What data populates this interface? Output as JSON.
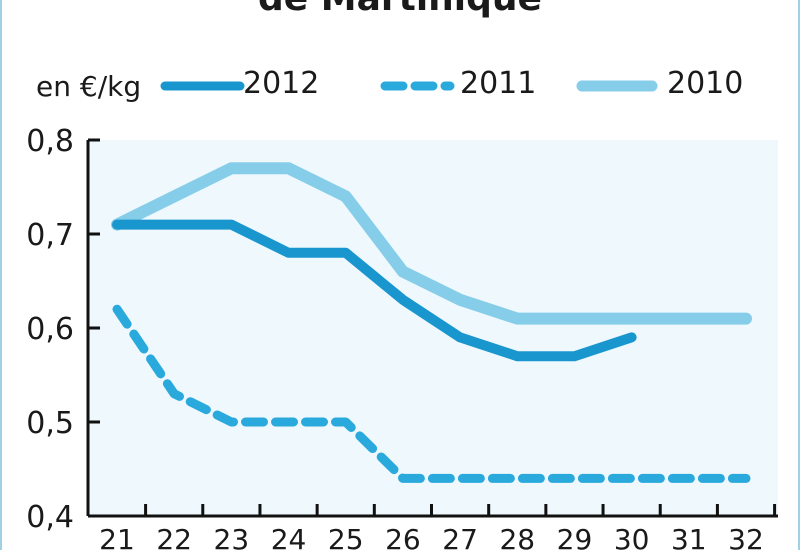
{
  "chart_data": {
    "type": "line",
    "title": "de Martinique",
    "unit_label": "en €/kg",
    "x": [
      21,
      22,
      23,
      24,
      25,
      26,
      27,
      28,
      29,
      30,
      31,
      32
    ],
    "y_ticks": [
      "0,4",
      "0,5",
      "0,6",
      "0,7",
      "0,8"
    ],
    "ylim": [
      0.4,
      0.8
    ],
    "xlim": [
      21,
      32
    ],
    "grid": false,
    "legend_placement": "top",
    "series": [
      {
        "name": "2012",
        "style": "solid",
        "color": "#1a96cf",
        "x": [
          21,
          23,
          24,
          25,
          26,
          27,
          28,
          29,
          30
        ],
        "values": [
          0.71,
          0.71,
          0.68,
          0.68,
          0.63,
          0.59,
          0.57,
          0.57,
          0.59
        ]
      },
      {
        "name": "2011",
        "style": "dashed",
        "color": "#29a9dc",
        "x": [
          21,
          22,
          23,
          24,
          25,
          26,
          27,
          28,
          29,
          30,
          31,
          32
        ],
        "values": [
          0.62,
          0.53,
          0.5,
          0.5,
          0.5,
          0.44,
          0.44,
          0.44,
          0.44,
          0.44,
          0.44,
          0.44
        ]
      },
      {
        "name": "2010",
        "style": "solid",
        "color": "#86cdea",
        "x": [
          21,
          22,
          23,
          24,
          25,
          26,
          27,
          28,
          29,
          30,
          31,
          32
        ],
        "values": [
          0.71,
          0.74,
          0.77,
          0.77,
          0.74,
          0.66,
          0.63,
          0.61,
          0.61,
          0.61,
          0.61,
          0.61
        ]
      }
    ]
  }
}
